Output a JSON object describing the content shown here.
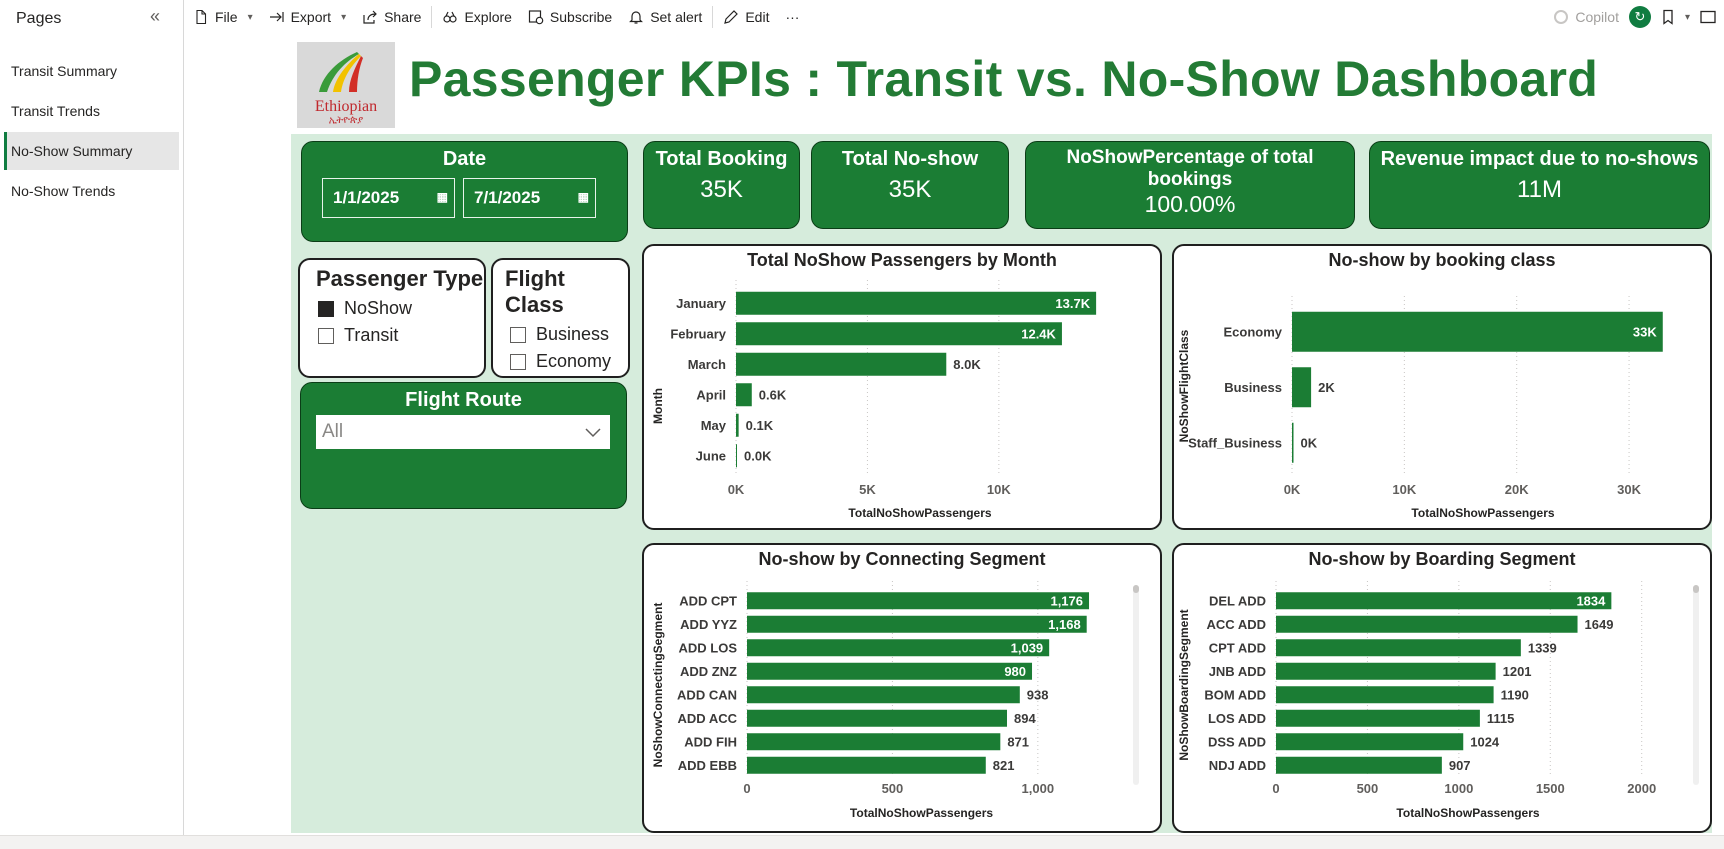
{
  "sidebar": {
    "title": "Pages",
    "pages": [
      {
        "label": "Transit Summary",
        "active": false
      },
      {
        "label": "Transit Trends",
        "active": false
      },
      {
        "label": "No-Show Summary",
        "active": true
      },
      {
        "label": "No-Show Trends",
        "active": false
      }
    ]
  },
  "toolbar": {
    "file": "File",
    "export": "Export",
    "share": "Share",
    "explore": "Explore",
    "subscribe": "Subscribe",
    "set_alert": "Set alert",
    "edit": "Edit",
    "more": "···",
    "copilot": "Copilot"
  },
  "colors": {
    "accent": "#1b7d34",
    "title": "#237b35",
    "bar": "#1b7d34",
    "canvas": "#d6ecdc"
  },
  "report": {
    "logo_text": "Ethiopian",
    "logo_subtext": "ኢትዮጵያ",
    "title": "Passenger KPIs : Transit vs. No-Show Dashboard"
  },
  "date_slicer": {
    "label": "Date",
    "start": "1/1/2025",
    "end": "7/1/2025"
  },
  "kpis": [
    {
      "title": "Total Booking",
      "value": "35K"
    },
    {
      "title": "Total No-show",
      "value": "35K"
    },
    {
      "title": "NoShowPercentage of total bookings",
      "value": "100.00%"
    },
    {
      "title": "Revenue impact due to no-shows",
      "value": "11M"
    }
  ],
  "passenger_type": {
    "title": "Passenger Type",
    "options": [
      {
        "label": "NoShow",
        "checked": true
      },
      {
        "label": "Transit",
        "checked": false
      }
    ]
  },
  "flight_class": {
    "title": "Flight Class",
    "options": [
      {
        "label": "Business",
        "checked": false
      },
      {
        "label": "Economy",
        "checked": false
      }
    ]
  },
  "flight_route": {
    "title": "Flight Route",
    "value": "All"
  },
  "chart_data": [
    {
      "type": "bar",
      "orientation": "horizontal",
      "title": "Total NoShow Passengers by Month",
      "xlabel": "TotalNoShowPassengers",
      "ylabel": "Month",
      "categories": [
        "January",
        "February",
        "March",
        "April",
        "May",
        "June"
      ],
      "values": [
        13700,
        12400,
        8000,
        600,
        100,
        0
      ],
      "data_labels": [
        "13.7K",
        "12.4K",
        "8.0K",
        "0.6K",
        "0.1K",
        "0.0K"
      ],
      "xlim": [
        0,
        14000
      ],
      "xticks": [
        {
          "value": 0,
          "label": "0K"
        },
        {
          "value": 5000,
          "label": "5K"
        },
        {
          "value": 10000,
          "label": "10K"
        }
      ],
      "grid": true
    },
    {
      "type": "bar",
      "orientation": "horizontal",
      "title": "No-show by booking class",
      "xlabel": "TotalNoShowPassengers",
      "ylabel": "NoShowFlightClass",
      "categories": [
        "Economy",
        "Business",
        "Staff_Business"
      ],
      "values": [
        33000,
        1700,
        100
      ],
      "data_labels": [
        "33K",
        "2K",
        "0K"
      ],
      "xlim": [
        0,
        34000
      ],
      "xticks": [
        {
          "value": 0,
          "label": "0K"
        },
        {
          "value": 10000,
          "label": "10K"
        },
        {
          "value": 20000,
          "label": "20K"
        },
        {
          "value": 30000,
          "label": "30K"
        }
      ],
      "grid": true
    },
    {
      "type": "bar",
      "orientation": "horizontal",
      "title": "No-show by Connecting Segment",
      "xlabel": "TotalNoShowPassengers",
      "ylabel": "NoShowConnectingSegment",
      "categories": [
        "ADD CPT",
        "ADD YYZ",
        "ADD LOS",
        "ADD ZNZ",
        "ADD CAN",
        "ADD ACC",
        "ADD FIH",
        "ADD EBB"
      ],
      "values": [
        1176,
        1168,
        1039,
        980,
        938,
        894,
        871,
        821
      ],
      "data_labels": [
        "1,176",
        "1,168",
        "1,039",
        "980",
        "938",
        "894",
        "871",
        "821"
      ],
      "xlim": [
        0,
        1200
      ],
      "xticks": [
        {
          "value": 0,
          "label": "0"
        },
        {
          "value": 500,
          "label": "500"
        },
        {
          "value": 1000,
          "label": "1,000"
        }
      ],
      "grid": true
    },
    {
      "type": "bar",
      "orientation": "horizontal",
      "title": "No-show by Boarding Segment",
      "xlabel": "TotalNoShowPassengers",
      "ylabel": "NoShowBoardingSegment",
      "categories": [
        "DEL ADD",
        "ACC ADD",
        "CPT ADD",
        "JNB ADD",
        "BOM ADD",
        "LOS ADD",
        "DSS ADD",
        "NDJ ADD"
      ],
      "values": [
        1834,
        1649,
        1339,
        1201,
        1190,
        1115,
        1024,
        907
      ],
      "data_labels": [
        "1834",
        "1649",
        "1339",
        "1201",
        "1190",
        "1115",
        "1024",
        "907"
      ],
      "xlim": [
        0,
        2100
      ],
      "xticks": [
        {
          "value": 0,
          "label": "0"
        },
        {
          "value": 500,
          "label": "500"
        },
        {
          "value": 1000,
          "label": "1000"
        },
        {
          "value": 1500,
          "label": "1500"
        },
        {
          "value": 2000,
          "label": "2000"
        }
      ],
      "grid": true
    }
  ]
}
